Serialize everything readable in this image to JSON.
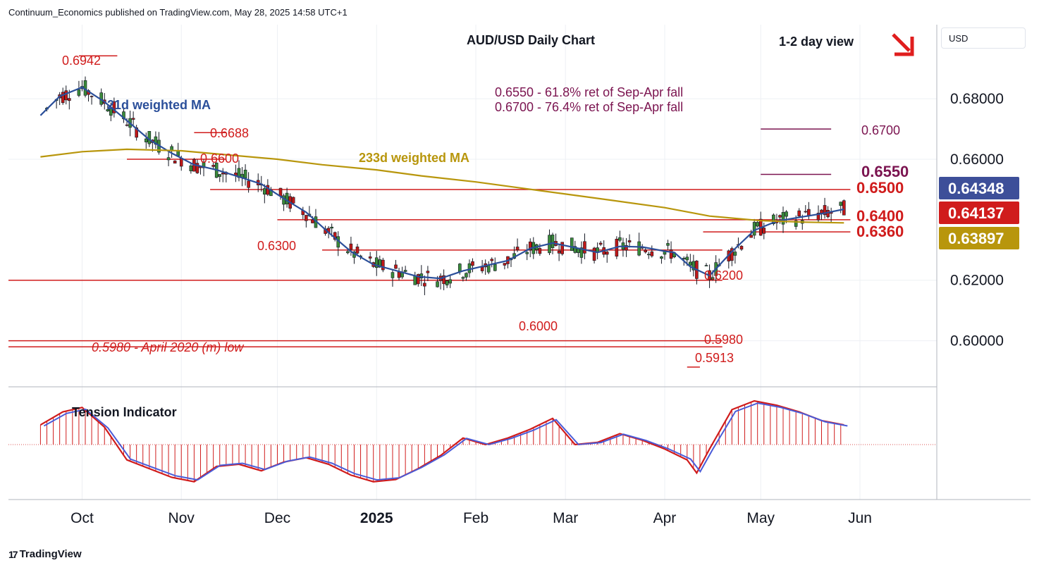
{
  "attribution": "Continuum_Economics published on TradingView.com, May 28, 2025 14:58 UTC+1",
  "branding": "TradingView",
  "currency_label": "USD",
  "colors": {
    "up": "#26a69a",
    "down": "#d01c1c",
    "ma21": "#2b4f9a",
    "ma233": "#b8960c",
    "support": "#d01c1c",
    "target": "#7b1450",
    "price_badge": "#3d4f99",
    "candle_body_up": "#3a8a3a",
    "candle_body_down": "#c01818",
    "tension_fill": "#d01c1c",
    "tension_line": "#4a5bd8"
  },
  "chart_data": {
    "type": "line",
    "title": "AUD/USD Daily Chart",
    "view": "1-2 day view",
    "view_direction": "down",
    "y_axis": {
      "ticks": [
        "0.68000",
        "0.66000",
        "0.62000",
        "0.60000"
      ],
      "range": [
        0.585,
        0.7045
      ]
    },
    "x_axis": {
      "ticks": [
        "Oct",
        "Nov",
        "Dec",
        "2025",
        "Feb",
        "Mar",
        "Apr",
        "May",
        "Jun"
      ]
    },
    "price_badges": [
      {
        "label": "0.64348",
        "value": 0.64348,
        "color": "#3d4f99"
      },
      {
        "label": "0.64137",
        "value": 0.64137,
        "color": "#d01c1c"
      },
      {
        "label": "0.63897",
        "value": 0.63897,
        "color": "#b8960c"
      }
    ],
    "series": [
      {
        "name": "21d weighted MA",
        "dates": [
          "2024-09-18",
          "2024-09-24",
          "2024-10-01",
          "2024-10-08",
          "2024-10-15",
          "2024-10-22",
          "2024-10-29",
          "2024-11-05",
          "2024-11-12",
          "2024-11-19",
          "2024-11-26",
          "2024-12-03",
          "2024-12-10",
          "2024-12-17",
          "2024-12-24",
          "2024-12-31",
          "2025-01-07",
          "2025-01-14",
          "2025-01-21",
          "2025-01-28",
          "2025-02-04",
          "2025-02-11",
          "2025-02-18",
          "2025-02-25",
          "2025-03-04",
          "2025-03-11",
          "2025-03-18",
          "2025-03-25",
          "2025-04-01",
          "2025-04-04",
          "2025-04-09",
          "2025-04-15",
          "2025-04-22",
          "2025-04-29",
          "2025-05-06",
          "2025-05-13",
          "2025-05-20",
          "2025-05-27"
        ],
        "values": [
          0.6745,
          0.6808,
          0.6838,
          0.679,
          0.6728,
          0.6665,
          0.662,
          0.6582,
          0.6565,
          0.6542,
          0.6518,
          0.647,
          0.6425,
          0.6358,
          0.6295,
          0.6252,
          0.6232,
          0.6212,
          0.6206,
          0.6231,
          0.6248,
          0.6265,
          0.6305,
          0.6323,
          0.6308,
          0.6292,
          0.6312,
          0.631,
          0.6296,
          0.6292,
          0.6245,
          0.6215,
          0.6295,
          0.6365,
          0.6395,
          0.6408,
          0.642,
          0.64348
        ]
      },
      {
        "name": "233d weighted MA",
        "dates": [
          "2024-09-18",
          "2024-10-01",
          "2024-10-15",
          "2024-11-01",
          "2024-11-15",
          "2024-12-01",
          "2024-12-15",
          "2025-01-01",
          "2025-01-15",
          "2025-02-01",
          "2025-02-15",
          "2025-03-01",
          "2025-03-15",
          "2025-04-01",
          "2025-04-15",
          "2025-05-01",
          "2025-05-15",
          "2025-05-27"
        ],
        "values": [
          0.6608,
          0.6625,
          0.6633,
          0.6628,
          0.6615,
          0.66,
          0.6582,
          0.6565,
          0.6545,
          0.6525,
          0.6505,
          0.6485,
          0.6465,
          0.644,
          0.6412,
          0.6397,
          0.6392,
          0.63897
        ]
      }
    ],
    "levels": [
      {
        "label": "0.6942",
        "value": 0.6942,
        "kind": "high"
      },
      {
        "label": "0.6688",
        "value": 0.6688,
        "kind": "high"
      },
      {
        "label": "0.6600",
        "value": 0.66,
        "kind": "support"
      },
      {
        "label": "0.6500",
        "value": 0.65,
        "kind": "resistance"
      },
      {
        "label": "0.6400",
        "value": 0.64,
        "kind": "resistance"
      },
      {
        "label": "0.6360",
        "value": 0.636,
        "kind": "support"
      },
      {
        "label": "0.6300",
        "value": 0.63,
        "kind": "support"
      },
      {
        "label": "0.6200",
        "value": 0.62,
        "kind": "support"
      },
      {
        "label": "0.6000",
        "value": 0.6,
        "kind": "support"
      },
      {
        "label": "0.5980",
        "value": 0.598,
        "kind": "support"
      },
      {
        "label": "0.5913",
        "value": 0.5913,
        "kind": "low"
      },
      {
        "label": "0.6550",
        "value": 0.655,
        "kind": "target"
      },
      {
        "label": "0.6700",
        "value": 0.67,
        "kind": "target"
      }
    ],
    "annotations": [
      "0.6550 - 61.8% ret of Sep-Apr fall",
      "0.6700 - 76.4% ret of Sep-Apr fall",
      "0.5980 - April 2020 (m) low"
    ],
    "indicator": {
      "name": "Tension Indicator",
      "dates": [
        "2024-09-18",
        "2024-09-25",
        "2024-10-01",
        "2024-10-08",
        "2024-10-15",
        "2024-10-22",
        "2024-10-29",
        "2024-11-05",
        "2024-11-12",
        "2024-11-19",
        "2024-11-26",
        "2024-12-03",
        "2024-12-10",
        "2024-12-17",
        "2024-12-24",
        "2024-12-31",
        "2025-01-07",
        "2025-01-14",
        "2025-01-21",
        "2025-01-28",
        "2025-02-04",
        "2025-02-11",
        "2025-02-18",
        "2025-02-25",
        "2025-03-04",
        "2025-03-11",
        "2025-03-18",
        "2025-03-25",
        "2025-04-01",
        "2025-04-08",
        "2025-04-11",
        "2025-04-15",
        "2025-04-22",
        "2025-04-29",
        "2025-05-06",
        "2025-05-13",
        "2025-05-20",
        "2025-05-27"
      ],
      "values": [
        0.45,
        0.75,
        0.85,
        0.4,
        -0.35,
        -0.55,
        -0.75,
        -0.85,
        -0.5,
        -0.45,
        -0.6,
        -0.4,
        -0.3,
        -0.45,
        -0.7,
        -0.85,
        -0.8,
        -0.55,
        -0.25,
        0.15,
        0.0,
        0.15,
        0.35,
        0.6,
        0.0,
        0.05,
        0.25,
        0.1,
        -0.1,
        -0.35,
        -0.65,
        -0.1,
        0.8,
        1.0,
        0.9,
        0.75,
        0.55,
        0.45
      ]
    }
  }
}
